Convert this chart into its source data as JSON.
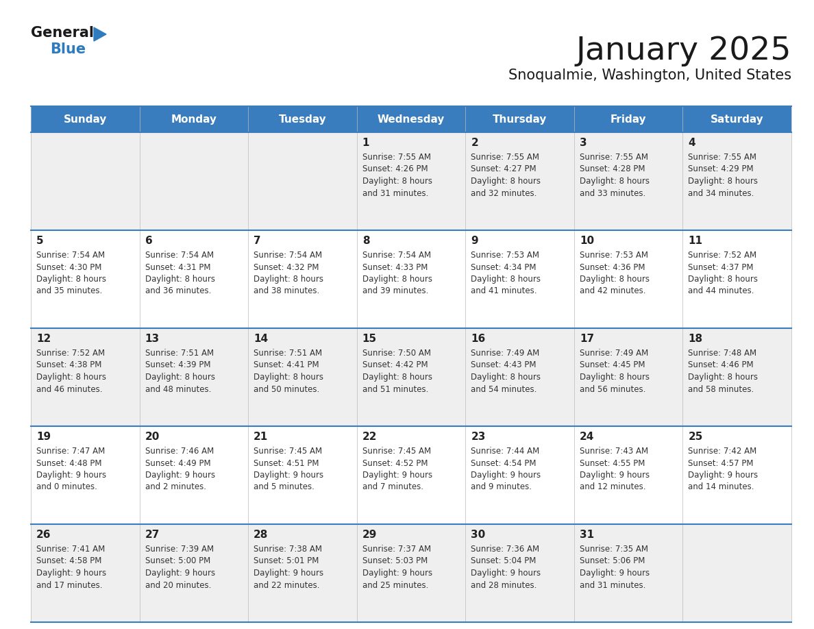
{
  "title": "January 2025",
  "subtitle": "Snoqualmie, Washington, United States",
  "days_of_week": [
    "Sunday",
    "Monday",
    "Tuesday",
    "Wednesday",
    "Thursday",
    "Friday",
    "Saturday"
  ],
  "header_bg": "#3a7dbf",
  "header_text": "#ffffff",
  "cell_bg_odd": "#efefef",
  "cell_bg_even": "#ffffff",
  "cell_border": "#3a7dbf",
  "day_number_color": "#222222",
  "info_text_color": "#333333",
  "title_color": "#1a1a1a",
  "subtitle_color": "#1a1a1a",
  "logo_general_color": "#1a1a1a",
  "logo_blue_color": "#2e7bbf",
  "calendar": [
    [
      null,
      null,
      null,
      {
        "day": 1,
        "sunrise": "7:55 AM",
        "sunset": "4:26 PM",
        "daylight_line1": "Daylight: 8 hours",
        "daylight_line2": "and 31 minutes."
      },
      {
        "day": 2,
        "sunrise": "7:55 AM",
        "sunset": "4:27 PM",
        "daylight_line1": "Daylight: 8 hours",
        "daylight_line2": "and 32 minutes."
      },
      {
        "day": 3,
        "sunrise": "7:55 AM",
        "sunset": "4:28 PM",
        "daylight_line1": "Daylight: 8 hours",
        "daylight_line2": "and 33 minutes."
      },
      {
        "day": 4,
        "sunrise": "7:55 AM",
        "sunset": "4:29 PM",
        "daylight_line1": "Daylight: 8 hours",
        "daylight_line2": "and 34 minutes."
      }
    ],
    [
      {
        "day": 5,
        "sunrise": "7:54 AM",
        "sunset": "4:30 PM",
        "daylight_line1": "Daylight: 8 hours",
        "daylight_line2": "and 35 minutes."
      },
      {
        "day": 6,
        "sunrise": "7:54 AM",
        "sunset": "4:31 PM",
        "daylight_line1": "Daylight: 8 hours",
        "daylight_line2": "and 36 minutes."
      },
      {
        "day": 7,
        "sunrise": "7:54 AM",
        "sunset": "4:32 PM",
        "daylight_line1": "Daylight: 8 hours",
        "daylight_line2": "and 38 minutes."
      },
      {
        "day": 8,
        "sunrise": "7:54 AM",
        "sunset": "4:33 PM",
        "daylight_line1": "Daylight: 8 hours",
        "daylight_line2": "and 39 minutes."
      },
      {
        "day": 9,
        "sunrise": "7:53 AM",
        "sunset": "4:34 PM",
        "daylight_line1": "Daylight: 8 hours",
        "daylight_line2": "and 41 minutes."
      },
      {
        "day": 10,
        "sunrise": "7:53 AM",
        "sunset": "4:36 PM",
        "daylight_line1": "Daylight: 8 hours",
        "daylight_line2": "and 42 minutes."
      },
      {
        "day": 11,
        "sunrise": "7:52 AM",
        "sunset": "4:37 PM",
        "daylight_line1": "Daylight: 8 hours",
        "daylight_line2": "and 44 minutes."
      }
    ],
    [
      {
        "day": 12,
        "sunrise": "7:52 AM",
        "sunset": "4:38 PM",
        "daylight_line1": "Daylight: 8 hours",
        "daylight_line2": "and 46 minutes."
      },
      {
        "day": 13,
        "sunrise": "7:51 AM",
        "sunset": "4:39 PM",
        "daylight_line1": "Daylight: 8 hours",
        "daylight_line2": "and 48 minutes."
      },
      {
        "day": 14,
        "sunrise": "7:51 AM",
        "sunset": "4:41 PM",
        "daylight_line1": "Daylight: 8 hours",
        "daylight_line2": "and 50 minutes."
      },
      {
        "day": 15,
        "sunrise": "7:50 AM",
        "sunset": "4:42 PM",
        "daylight_line1": "Daylight: 8 hours",
        "daylight_line2": "and 51 minutes."
      },
      {
        "day": 16,
        "sunrise": "7:49 AM",
        "sunset": "4:43 PM",
        "daylight_line1": "Daylight: 8 hours",
        "daylight_line2": "and 54 minutes."
      },
      {
        "day": 17,
        "sunrise": "7:49 AM",
        "sunset": "4:45 PM",
        "daylight_line1": "Daylight: 8 hours",
        "daylight_line2": "and 56 minutes."
      },
      {
        "day": 18,
        "sunrise": "7:48 AM",
        "sunset": "4:46 PM",
        "daylight_line1": "Daylight: 8 hours",
        "daylight_line2": "and 58 minutes."
      }
    ],
    [
      {
        "day": 19,
        "sunrise": "7:47 AM",
        "sunset": "4:48 PM",
        "daylight_line1": "Daylight: 9 hours",
        "daylight_line2": "and 0 minutes."
      },
      {
        "day": 20,
        "sunrise": "7:46 AM",
        "sunset": "4:49 PM",
        "daylight_line1": "Daylight: 9 hours",
        "daylight_line2": "and 2 minutes."
      },
      {
        "day": 21,
        "sunrise": "7:45 AM",
        "sunset": "4:51 PM",
        "daylight_line1": "Daylight: 9 hours",
        "daylight_line2": "and 5 minutes."
      },
      {
        "day": 22,
        "sunrise": "7:45 AM",
        "sunset": "4:52 PM",
        "daylight_line1": "Daylight: 9 hours",
        "daylight_line2": "and 7 minutes."
      },
      {
        "day": 23,
        "sunrise": "7:44 AM",
        "sunset": "4:54 PM",
        "daylight_line1": "Daylight: 9 hours",
        "daylight_line2": "and 9 minutes."
      },
      {
        "day": 24,
        "sunrise": "7:43 AM",
        "sunset": "4:55 PM",
        "daylight_line1": "Daylight: 9 hours",
        "daylight_line2": "and 12 minutes."
      },
      {
        "day": 25,
        "sunrise": "7:42 AM",
        "sunset": "4:57 PM",
        "daylight_line1": "Daylight: 9 hours",
        "daylight_line2": "and 14 minutes."
      }
    ],
    [
      {
        "day": 26,
        "sunrise": "7:41 AM",
        "sunset": "4:58 PM",
        "daylight_line1": "Daylight: 9 hours",
        "daylight_line2": "and 17 minutes."
      },
      {
        "day": 27,
        "sunrise": "7:39 AM",
        "sunset": "5:00 PM",
        "daylight_line1": "Daylight: 9 hours",
        "daylight_line2": "and 20 minutes."
      },
      {
        "day": 28,
        "sunrise": "7:38 AM",
        "sunset": "5:01 PM",
        "daylight_line1": "Daylight: 9 hours",
        "daylight_line2": "and 22 minutes."
      },
      {
        "day": 29,
        "sunrise": "7:37 AM",
        "sunset": "5:03 PM",
        "daylight_line1": "Daylight: 9 hours",
        "daylight_line2": "and 25 minutes."
      },
      {
        "day": 30,
        "sunrise": "7:36 AM",
        "sunset": "5:04 PM",
        "daylight_line1": "Daylight: 9 hours",
        "daylight_line2": "and 28 minutes."
      },
      {
        "day": 31,
        "sunrise": "7:35 AM",
        "sunset": "5:06 PM",
        "daylight_line1": "Daylight: 9 hours",
        "daylight_line2": "and 31 minutes."
      },
      null
    ]
  ]
}
